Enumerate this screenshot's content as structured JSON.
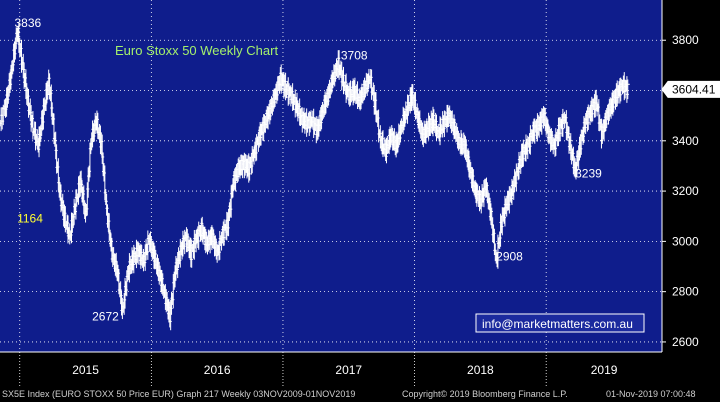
{
  "chart_data": {
    "type": "candlestick",
    "title": "Euro Stoxx 50 Weekly Chart",
    "y_ticks": [
      2600,
      2800,
      3000,
      3200,
      3400,
      3600,
      3800
    ],
    "ylim": [
      2560,
      3960
    ],
    "x_tick_labels": [
      "2015",
      "2016",
      "2017",
      "2018",
      "2019"
    ],
    "x_tick_positions": [
      2015.0,
      2016.0,
      2017.0,
      2018.0,
      2019.0
    ],
    "xlim": [
      2014.85,
      2019.88
    ],
    "last_price": "3604.41",
    "grid": true,
    "annotations": [
      {
        "text": "3836",
        "x": 2014.96,
        "y": 3836,
        "color": "#ffffff"
      },
      {
        "text": "1164",
        "x": 2014.98,
        "y": 3060,
        "color": "#ffff33"
      },
      {
        "text": "2672",
        "x": 2015.55,
        "y": 2670,
        "color": "#ffffff"
      },
      {
        "text": "3708",
        "x": 2017.44,
        "y": 3708,
        "color": "#ffffff"
      },
      {
        "text": "2908",
        "x": 2018.62,
        "y": 2908,
        "color": "#ffffff"
      },
      {
        "text": "3239",
        "x": 2019.22,
        "y": 3239,
        "color": "#ffffff"
      }
    ],
    "series": [
      {
        "values": [
          [
            2014.85,
            3470
          ],
          [
            2014.9,
            3560
          ],
          [
            2014.94,
            3690
          ],
          [
            2014.98,
            3836
          ],
          [
            2015.02,
            3700
          ],
          [
            2015.06,
            3560
          ],
          [
            2015.1,
            3450
          ],
          [
            2015.14,
            3380
          ],
          [
            2015.18,
            3520
          ],
          [
            2015.22,
            3640
          ],
          [
            2015.26,
            3430
          ],
          [
            2015.3,
            3200
          ],
          [
            2015.34,
            3090
          ],
          [
            2015.38,
            3020
          ],
          [
            2015.42,
            3140
          ],
          [
            2015.46,
            3240
          ],
          [
            2015.5,
            3100
          ],
          [
            2015.54,
            3400
          ],
          [
            2015.58,
            3480
          ],
          [
            2015.62,
            3380
          ],
          [
            2015.66,
            3120
          ],
          [
            2015.7,
            2950
          ],
          [
            2015.74,
            2880
          ],
          [
            2015.78,
            2720
          ],
          [
            2015.82,
            2880
          ],
          [
            2015.86,
            2930
          ],
          [
            2015.9,
            2960
          ],
          [
            2015.94,
            2920
          ],
          [
            2015.98,
            3010
          ],
          [
            2016.02,
            2940
          ],
          [
            2016.06,
            2870
          ],
          [
            2016.1,
            2790
          ],
          [
            2016.14,
            2700
          ],
          [
            2016.18,
            2880
          ],
          [
            2016.22,
            2960
          ],
          [
            2016.26,
            3020
          ],
          [
            2016.3,
            2950
          ],
          [
            2016.34,
            3010
          ],
          [
            2016.38,
            3050
          ],
          [
            2016.42,
            2990
          ],
          [
            2016.46,
            3020
          ],
          [
            2016.5,
            2950
          ],
          [
            2016.54,
            3030
          ],
          [
            2016.58,
            3070
          ],
          [
            2016.62,
            3230
          ],
          [
            2016.66,
            3290
          ],
          [
            2016.7,
            3310
          ],
          [
            2016.74,
            3290
          ],
          [
            2016.78,
            3350
          ],
          [
            2016.82,
            3420
          ],
          [
            2016.86,
            3470
          ],
          [
            2016.9,
            3520
          ],
          [
            2016.94,
            3580
          ],
          [
            2016.98,
            3650
          ],
          [
            2017.02,
            3610
          ],
          [
            2017.06,
            3580
          ],
          [
            2017.1,
            3540
          ],
          [
            2017.14,
            3490
          ],
          [
            2017.18,
            3470
          ],
          [
            2017.22,
            3480
          ],
          [
            2017.26,
            3440
          ],
          [
            2017.3,
            3520
          ],
          [
            2017.34,
            3580
          ],
          [
            2017.38,
            3650
          ],
          [
            2017.42,
            3708
          ],
          [
            2017.46,
            3630
          ],
          [
            2017.5,
            3580
          ],
          [
            2017.54,
            3600
          ],
          [
            2017.58,
            3560
          ],
          [
            2017.62,
            3610
          ],
          [
            2017.66,
            3650
          ],
          [
            2017.7,
            3540
          ],
          [
            2017.74,
            3400
          ],
          [
            2017.78,
            3360
          ],
          [
            2017.82,
            3420
          ],
          [
            2017.86,
            3380
          ],
          [
            2017.9,
            3460
          ],
          [
            2017.94,
            3520
          ],
          [
            2017.98,
            3580
          ],
          [
            2018.02,
            3500
          ],
          [
            2018.06,
            3420
          ],
          [
            2018.1,
            3450
          ],
          [
            2018.14,
            3480
          ],
          [
            2018.18,
            3430
          ],
          [
            2018.22,
            3470
          ],
          [
            2018.26,
            3500
          ],
          [
            2018.3,
            3450
          ],
          [
            2018.34,
            3390
          ],
          [
            2018.38,
            3380
          ],
          [
            2018.42,
            3280
          ],
          [
            2018.46,
            3200
          ],
          [
            2018.5,
            3160
          ],
          [
            2018.54,
            3220
          ],
          [
            2018.58,
            3100
          ],
          [
            2018.62,
            2920
          ],
          [
            2018.66,
            3080
          ],
          [
            2018.7,
            3150
          ],
          [
            2018.74,
            3200
          ],
          [
            2018.78,
            3280
          ],
          [
            2018.82,
            3350
          ],
          [
            2018.86,
            3380
          ],
          [
            2018.9,
            3440
          ],
          [
            2018.94,
            3460
          ],
          [
            2018.98,
            3500
          ],
          [
            2019.02,
            3420
          ],
          [
            2019.06,
            3380
          ],
          [
            2019.1,
            3450
          ],
          [
            2019.14,
            3490
          ],
          [
            2019.18,
            3380
          ],
          [
            2019.22,
            3280
          ],
          [
            2019.26,
            3390
          ],
          [
            2019.3,
            3480
          ],
          [
            2019.34,
            3520
          ],
          [
            2019.38,
            3560
          ],
          [
            2019.42,
            3420
          ],
          [
            2019.46,
            3500
          ],
          [
            2019.5,
            3550
          ],
          [
            2019.54,
            3590
          ],
          [
            2019.58,
            3620
          ],
          [
            2019.62,
            3604
          ]
        ]
      }
    ]
  },
  "footer": {
    "left": "SX5E Index (EURO STOXX 50 Price EUR) Graph 217  Weekly 03NOV2009-01NOV2019",
    "center": "Copyright© 2019 Bloomberg Finance L.P.",
    "right": "01-Nov-2019 07:00:48"
  },
  "email": "info@marketmatters.com.au"
}
